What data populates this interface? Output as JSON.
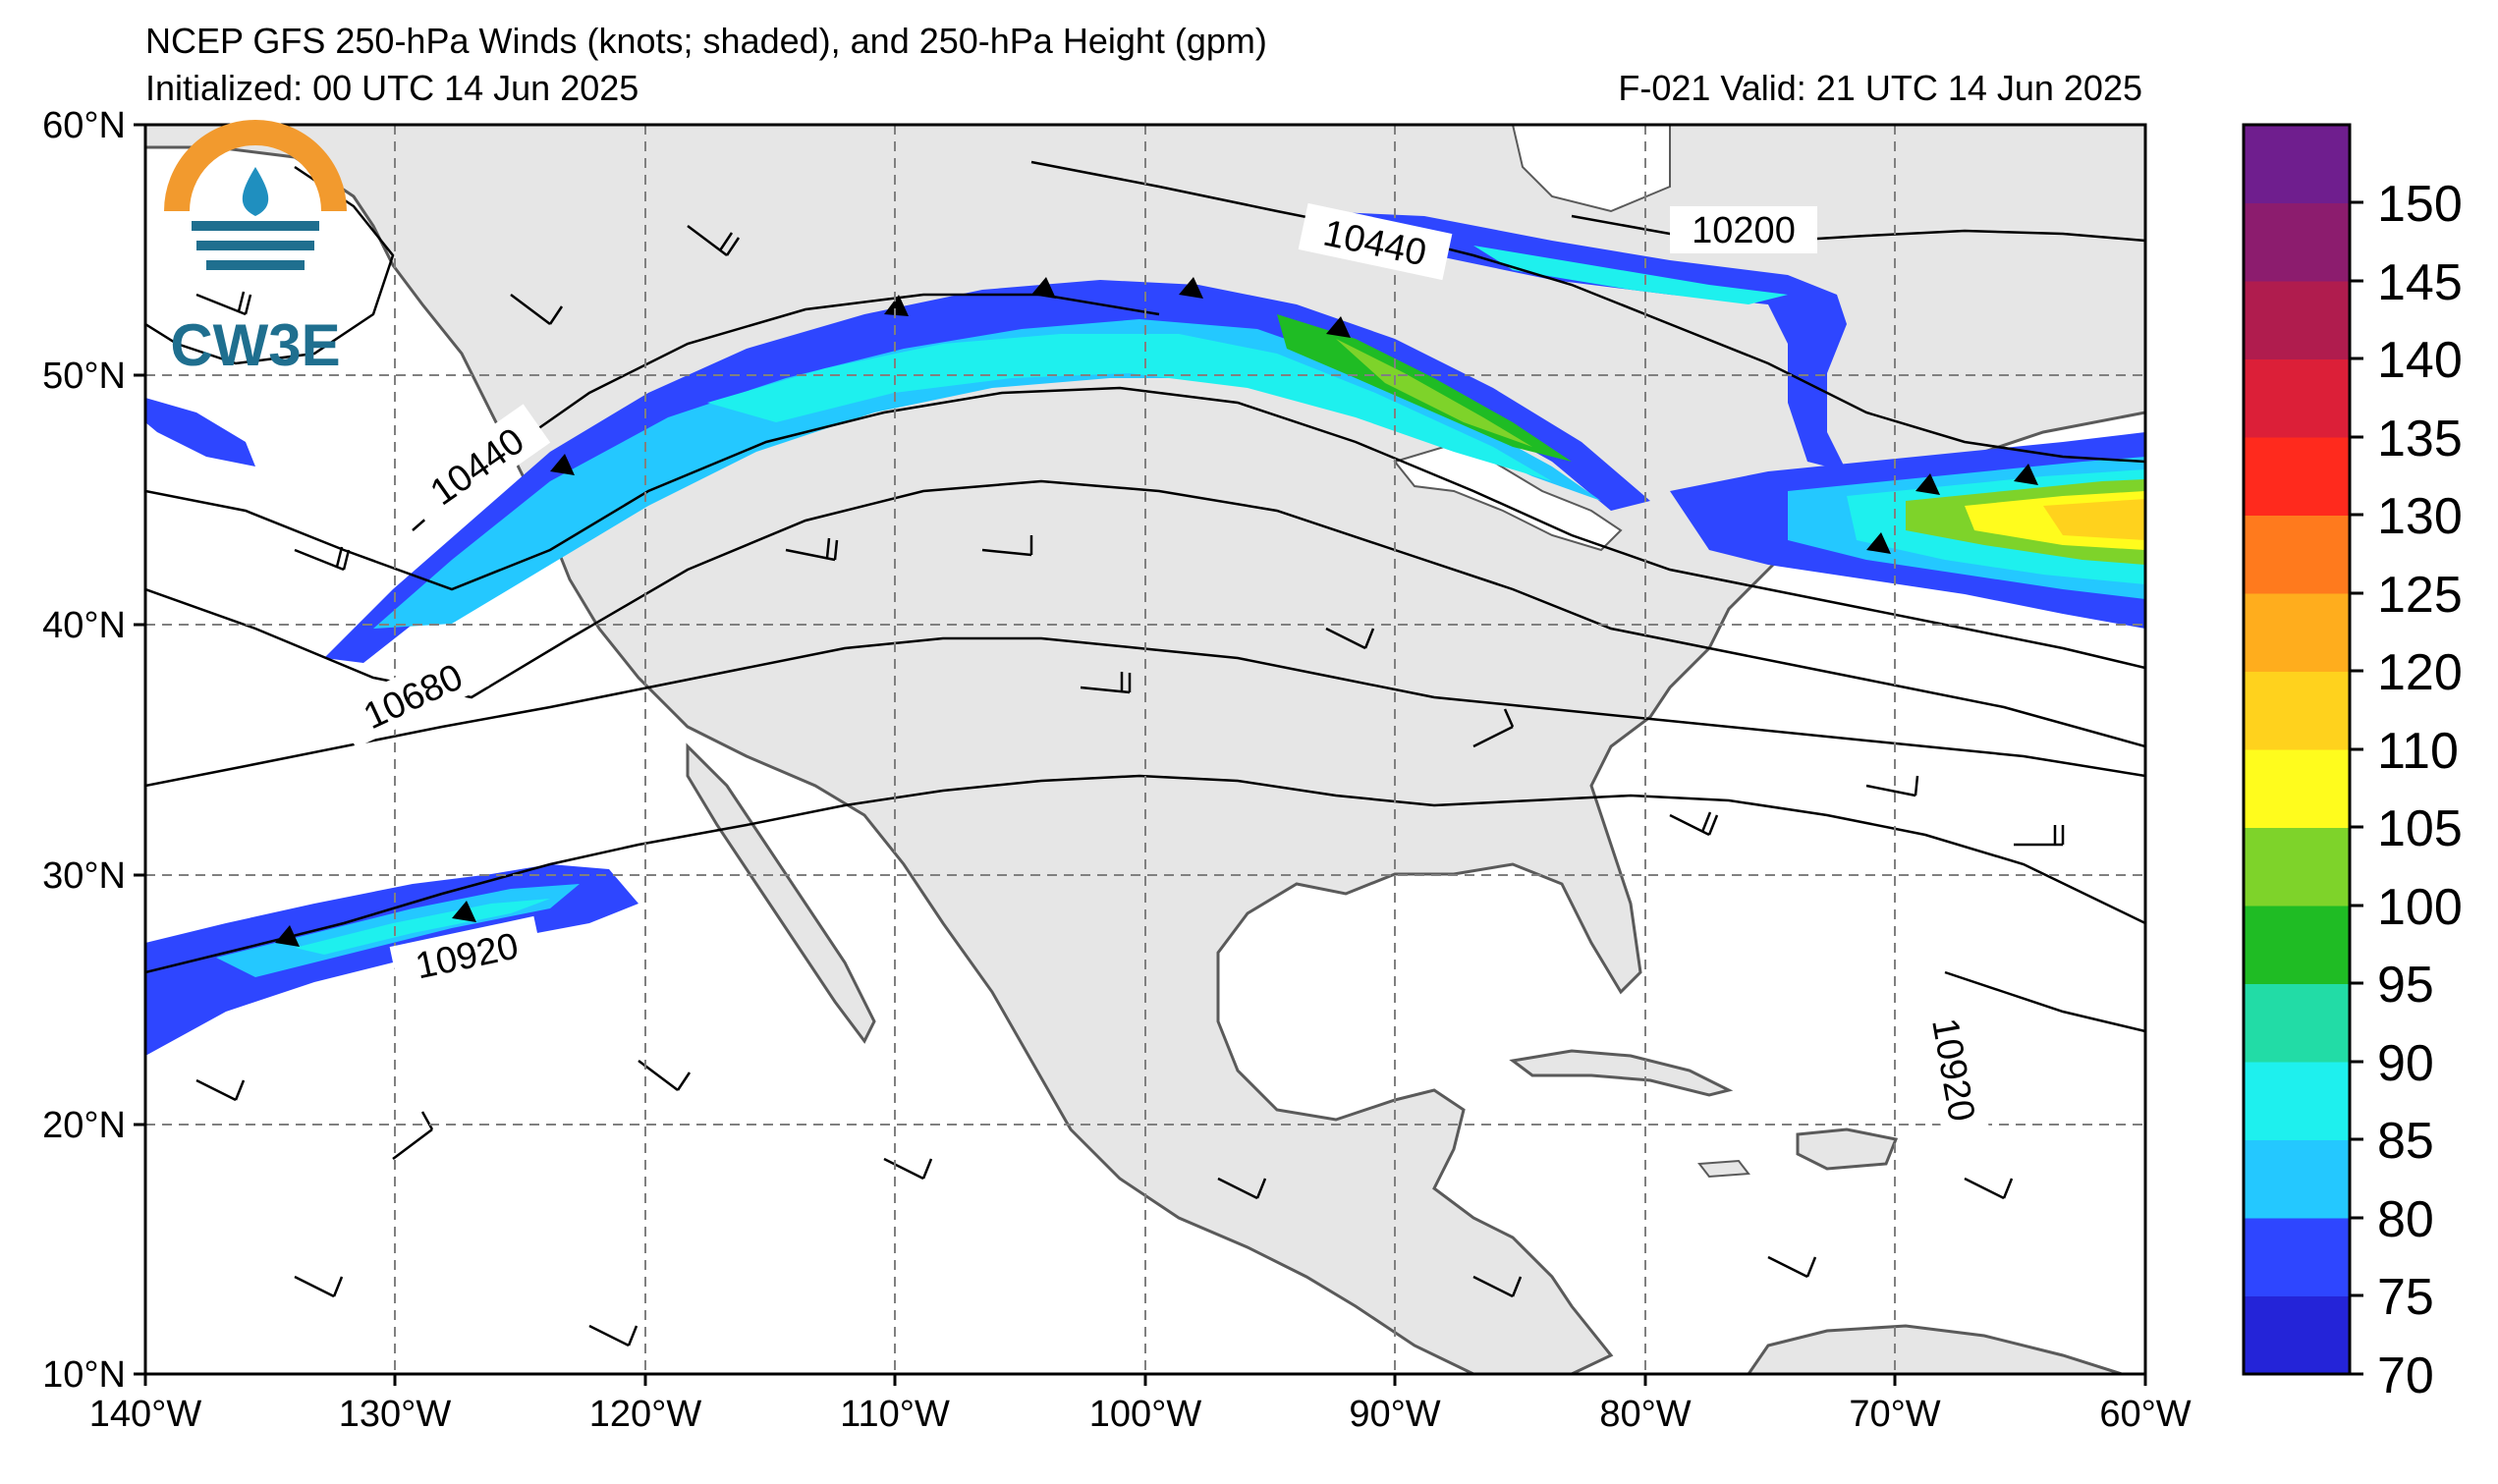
{
  "title_line1": "NCEP GFS 250-hPa Winds (knots; shaded), and 250-hPa Height (gpm)",
  "title_line2": "Initialized: 00 UTC 14 Jun 2025",
  "valid_text": "F-021  Valid: 21 UTC 14 Jun 2025",
  "logo_text": "CW3E",
  "lon_labels": [
    "140°W",
    "130°W",
    "120°W",
    "110°W",
    "100°W",
    "90°W",
    "80°W",
    "70°W",
    "60°W"
  ],
  "lat_labels": [
    "60°N",
    "50°N",
    "40°N",
    "30°N",
    "20°N",
    "10°N"
  ],
  "height_labels": [
    "10440",
    "10440",
    "10200",
    "10680",
    "10920",
    "10920"
  ],
  "colorbar": {
    "ticks": [
      "70",
      "75",
      "80",
      "85",
      "90",
      "95",
      "100",
      "105",
      "110",
      "120",
      "125",
      "130",
      "135",
      "140",
      "145",
      "150"
    ],
    "colors": [
      "#2424d8",
      "#2e46ff",
      "#24c8ff",
      "#1ef0ee",
      "#22dca6",
      "#1fbc24",
      "#7ed32a",
      "#fffc1d",
      "#ffd21d",
      "#ffad1d",
      "#ff7a1d",
      "#ff2a1d",
      "#dc1f38",
      "#b01c4e",
      "#8c1c6e",
      "#6f1e8e"
    ]
  },
  "colors": {
    "land": "#e6e6e6",
    "grid": "#808080",
    "coast": "#555555"
  }
}
